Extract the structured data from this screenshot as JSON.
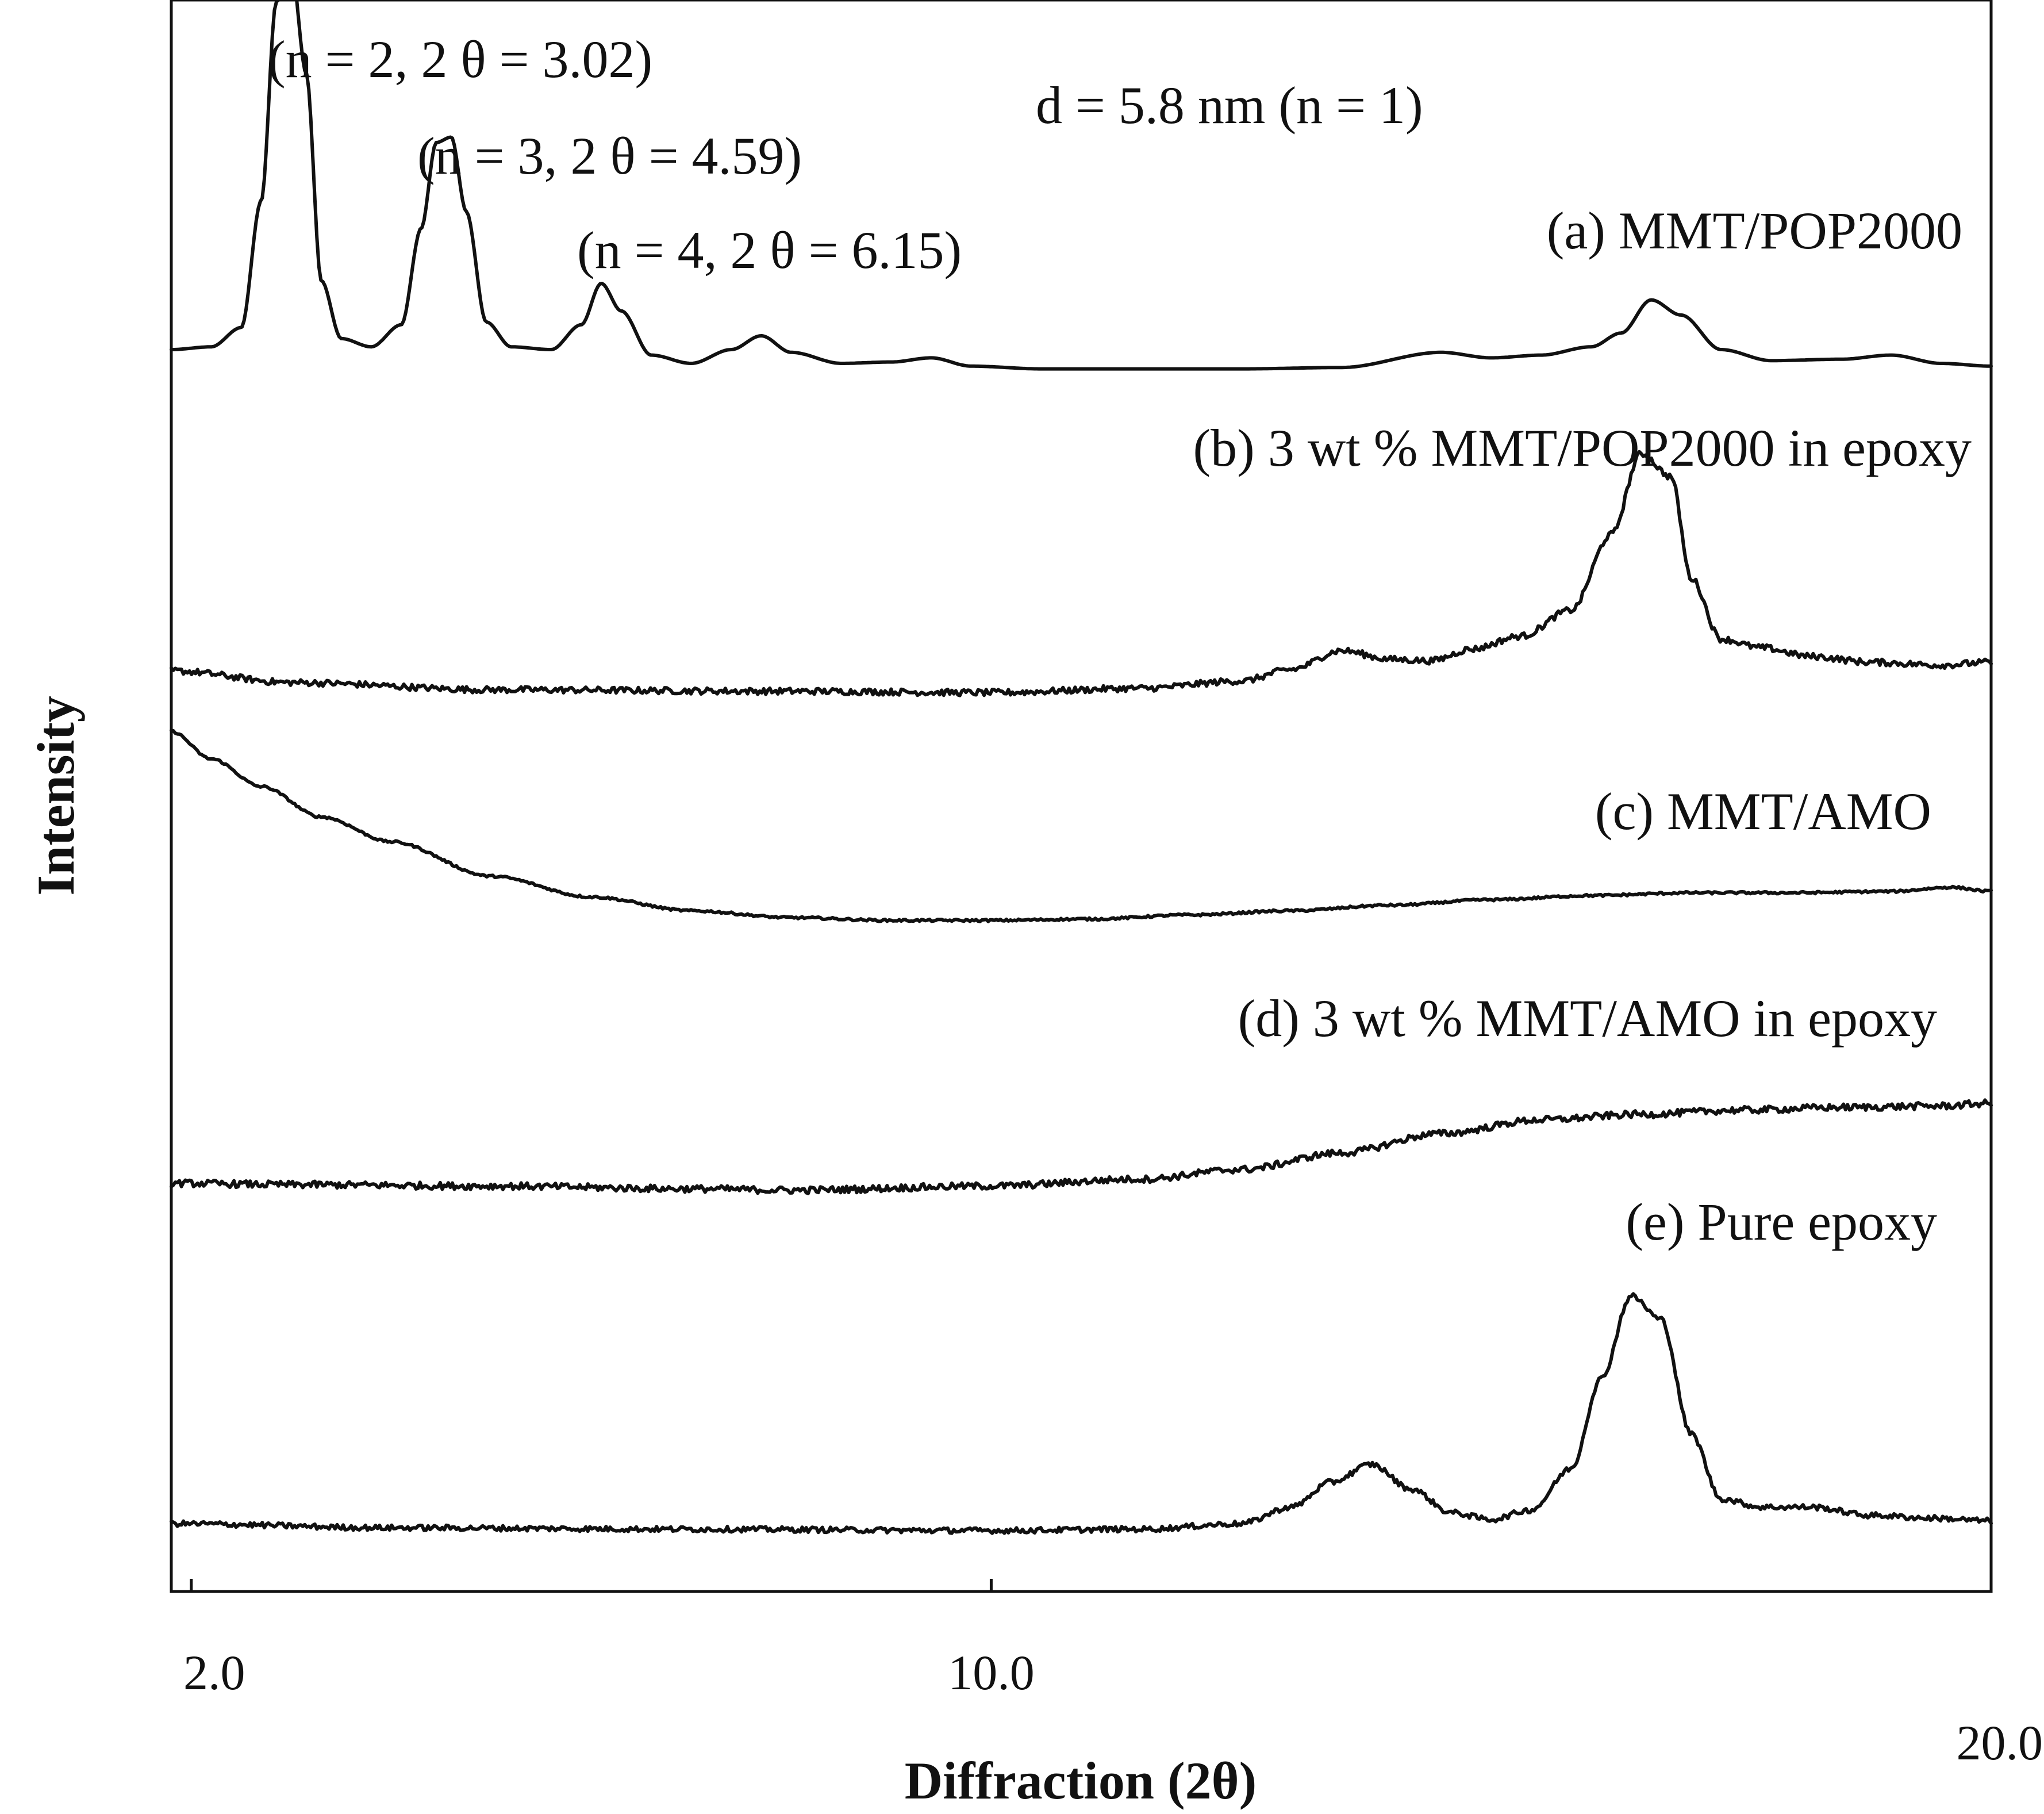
{
  "chart_data": {
    "type": "line",
    "title": "",
    "xlabel": "Diffraction (2θ)",
    "ylabel": "Intensity",
    "xlim": [
      1.8,
      20.0
    ],
    "x_ticks": [
      "2.0",
      "10.0",
      "20.0"
    ],
    "x_tick_values": [
      2.0,
      10.0,
      20.0
    ],
    "y_ticks": [],
    "grid": false,
    "legend": "inline labels",
    "series": [
      {
        "name": "(a) MMT/POP2000",
        "baseline": 100,
        "noise": 0,
        "x": [
          1.8,
          2.2,
          2.5,
          2.7,
          2.85,
          3.0,
          3.15,
          3.3,
          3.5,
          3.8,
          4.1,
          4.3,
          4.45,
          4.6,
          4.75,
          4.95,
          5.2,
          5.6,
          5.9,
          6.1,
          6.3,
          6.6,
          7.0,
          7.4,
          7.7,
          8.0,
          8.5,
          9.0,
          9.4,
          9.8,
          10.5,
          11.5,
          12.5,
          13.5,
          14.5,
          15.0,
          15.5,
          16.0,
          16.3,
          16.6,
          16.9,
          17.3,
          17.8,
          18.5,
          19.0,
          19.5,
          20.0
        ],
        "y": [
          100,
          102,
          116,
          208,
          352,
          376,
          300,
          150,
          108,
          102,
          118,
          188,
          250,
          254,
          200,
          120,
          102,
          100,
          118,
          148,
          128,
          96,
          90,
          100,
          110,
          98,
          90,
          91,
          94,
          88,
          86,
          86,
          86,
          87,
          98,
          94,
          96,
          102,
          112,
          136,
          125,
          100,
          92,
          93,
          96,
          90,
          88
        ]
      },
      {
        "name": "(b) 3 wt % MMT/POP2000 in epoxy",
        "baseline": 100,
        "noise": 2.2,
        "x": [
          1.8,
          3.0,
          5.0,
          8.0,
          10.0,
          11.5,
          12.5,
          13.0,
          13.5,
          14.0,
          14.4,
          14.8,
          15.3,
          15.8,
          16.2,
          16.5,
          16.8,
          17.0,
          17.3,
          17.7,
          18.2,
          18.8,
          19.5,
          20.0
        ],
        "y": [
          106,
          98,
          93,
          92,
          91,
          94,
          99,
          107,
          120,
          114,
          113,
          121,
          130,
          148,
          200,
          256,
          240,
          170,
          128,
          122,
          116,
          112,
          110,
          112
        ]
      },
      {
        "name": "(c) MMT/AMO",
        "baseline": 100,
        "noise": 0.8,
        "x": [
          1.8,
          2.2,
          2.7,
          3.3,
          4.0,
          5.0,
          6.0,
          7.0,
          8.0,
          9.0,
          10.0,
          11.0,
          12.0,
          13.0,
          14.0,
          15.0,
          16.0,
          17.0,
          18.0,
          19.0,
          19.6,
          20.0
        ],
        "y": [
          230,
          210,
          190,
          168,
          150,
          125,
          110,
          100,
          95,
          93,
          93,
          94,
          97,
          100,
          104,
          108,
          111,
          113,
          113,
          114,
          117,
          114
        ]
      },
      {
        "name": "(d) 3 wt % MMT/AMO in epoxy",
        "baseline": 100,
        "noise": 2.5,
        "x": [
          1.8,
          3.0,
          5.0,
          7.0,
          8.0,
          10.0,
          11.5,
          12.5,
          13.5,
          14.5,
          15.5,
          16.5,
          17.5,
          18.5,
          19.5,
          20.0
        ],
        "y": [
          100,
          99,
          98,
          96,
          95,
          98,
          103,
          110,
          122,
          136,
          146,
          150,
          153,
          155,
          156,
          158
        ]
      },
      {
        "name": "(e) Pure epoxy",
        "baseline": 100,
        "noise": 2.0,
        "x": [
          1.8,
          4.0,
          7.0,
          10.0,
          11.5,
          12.5,
          13.0,
          13.4,
          13.8,
          14.2,
          14.6,
          15.0,
          15.4,
          15.8,
          16.1,
          16.4,
          16.7,
          17.0,
          17.3,
          17.7,
          18.2,
          18.8,
          19.4,
          20.0
        ],
        "y": [
          100,
          97,
          96,
          95,
          96,
          100,
          112,
          130,
          143,
          125,
          108,
          103,
          110,
          140,
          205,
          265,
          248,
          165,
          118,
          112,
          112,
          106,
          104,
          102
        ]
      }
    ],
    "annotations": [
      "(n = 2, 2 θ = 3.02)",
      "(n = 3, 2 θ = 4.59)",
      "(n = 4, 2 θ = 6.15)",
      "d = 5.8 nm (n = 1)"
    ]
  }
}
